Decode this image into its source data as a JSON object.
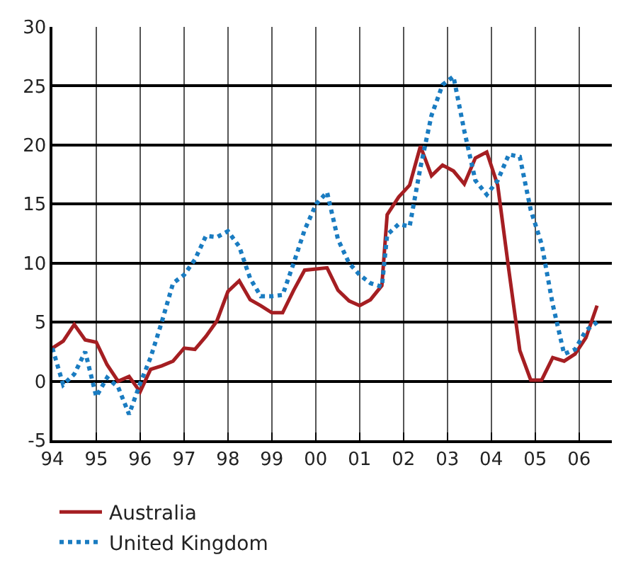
{
  "chart_data": {
    "type": "line",
    "x": [
      "1994-01-01",
      "1994-04-01",
      "1994-07-02",
      "1994-10-01",
      "1995-01-01",
      "1995-04-01",
      "1995-07-02",
      "1995-10-01",
      "1996-01-01",
      "1996-03-28",
      "1996-06-29",
      "1996-10-01",
      "1997-01-01",
      "1997-04-01",
      "1997-07-02",
      "1997-10-01",
      "1998-01-01",
      "1998-04-05",
      "1998-07-05",
      "1998-10-01",
      "1999-01-01",
      "1999-04-01",
      "1999-07-02",
      "1999-10-01",
      "2000-01-05",
      "2000-04-05",
      "2000-07-05",
      "2000-10-05",
      "2001-01-01",
      "2001-04-01",
      "2001-07-05",
      "2001-08-18",
      "2001-11-22",
      "2002-02-21",
      "2002-05-22",
      "2002-08-22",
      "2002-11-22",
      "2003-02-21",
      "2003-05-22",
      "2003-08-22",
      "2003-11-25",
      "2004-02-24",
      "2004-05-27",
      "2004-08-26",
      "2004-11-25",
      "2005-02-24",
      "2005-05-27",
      "2005-08-30",
      "2005-11-29",
      "2006-02-28",
      "2006-05-31"
    ],
    "series": [
      {
        "name": "Australia",
        "color": "#a51e22",
        "line_style": "solid",
        "values": [
          2.8,
          3.4,
          4.8,
          3.5,
          3.3,
          1.4,
          0,
          0.4,
          -0.9,
          1.0,
          1.3,
          1.7,
          2.8,
          2.7,
          3.8,
          5.1,
          7.6,
          8.5,
          6.9,
          6.4,
          5.8,
          5.8,
          7.7,
          9.4,
          9.5,
          9.6,
          7.7,
          6.8,
          6.4,
          6.9,
          8.1,
          14.1,
          15.6,
          16.6,
          19.9,
          17.4,
          18.3,
          17.8,
          16.7,
          18.9,
          19.4,
          16.6,
          9.4,
          2.6,
          0.1,
          0.1,
          2.0,
          1.7,
          2.3,
          3.7,
          6.4
        ]
      },
      {
        "name": "United Kingdom",
        "color": "#1a7cc1",
        "line_style": "dotted",
        "values": [
          2.8,
          -0.3,
          0.6,
          2.5,
          -1.3,
          0.3,
          -0.5,
          -2.8,
          -0.2,
          2.0,
          5.0,
          8.3,
          9.0,
          10.3,
          12.3,
          12.2,
          12.7,
          11.4,
          8.7,
          7.2,
          7.2,
          7.3,
          10.0,
          12.8,
          15.0,
          16.0,
          12.0,
          10.0,
          9.0,
          8.3,
          8.0,
          12.4,
          13.3,
          13.1,
          18.1,
          22.5,
          25.1,
          25.8,
          21.2,
          17.0,
          15.8,
          17.0,
          19.2,
          19.0,
          14.5,
          11.6,
          6.5,
          2.3,
          2.7,
          4.3,
          5.0
        ]
      }
    ],
    "xlim": [
      "1994-01-01",
      "2006-10-01"
    ],
    "xticks": [
      {
        "value": "1994",
        "label": "94"
      },
      {
        "value": "1995",
        "label": "95"
      },
      {
        "value": "1996",
        "label": "96"
      },
      {
        "value": "1997",
        "label": "97"
      },
      {
        "value": "1998",
        "label": "98"
      },
      {
        "value": "1999",
        "label": "99"
      },
      {
        "value": "2000",
        "label": "00"
      },
      {
        "value": "2001",
        "label": "01"
      },
      {
        "value": "2002",
        "label": "02"
      },
      {
        "value": "2003",
        "label": "03"
      },
      {
        "value": "2004",
        "label": "04"
      },
      {
        "value": "2005",
        "label": "05"
      },
      {
        "value": "2006",
        "label": "06"
      }
    ],
    "ylim": [
      -5,
      30
    ],
    "yticks": [
      -5,
      0,
      5,
      10,
      15,
      20,
      25,
      30
    ],
    "grid": true,
    "legend": "bottom",
    "marker": "none"
  }
}
